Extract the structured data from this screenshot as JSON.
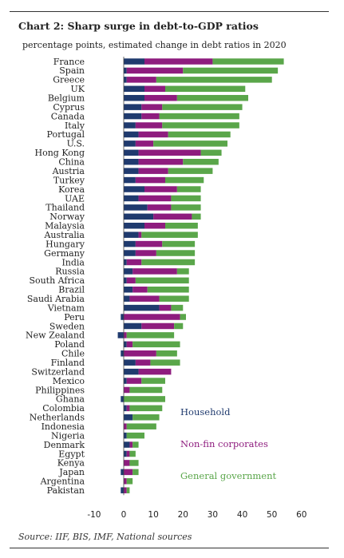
{
  "title": "Chart 2: Sharp surge in debt-to-GDP ratios",
  "subtitle": "percentage points, estimated change in debt ratios in 2020",
  "source": "Source: IIF, BIS, IMF, National sources",
  "colors": {
    "household": "#1f3a6e",
    "nonfin": "#8e1c7e",
    "government": "#5aa64a"
  },
  "chart_data": {
    "type": "bar",
    "orientation": "horizontal",
    "stacked": true,
    "categories": [
      "France",
      "Spain",
      "Greece",
      "UK",
      "Belgium",
      "Cyprus",
      "Canada",
      "Italy",
      "Portugal",
      "U.S.",
      "Hong Kong",
      "China",
      "Austria",
      "Turkey",
      "Korea",
      "UAE",
      "Thailand",
      "Norway",
      "Malaysia",
      "Australia",
      "Hungary",
      "Germany",
      "India",
      "Russia",
      "South Africa",
      "Brazil",
      "Saudi Arabia",
      "Vietnam",
      "Peru",
      "Sweden",
      "New Zealand",
      "Poland",
      "Chile",
      "Finland",
      "Switzerland",
      "Mexico",
      "Philippines",
      "Ghana",
      "Colombia",
      "Netherlands",
      "Indonesia",
      "Nigeria",
      "Denmark",
      "Egypt",
      "Kenya",
      "Japan",
      "Argentina",
      "Pakistan"
    ],
    "series": [
      {
        "name": "Household",
        "values": [
          7,
          1,
          1,
          7,
          7,
          6,
          6,
          4,
          5,
          4,
          5,
          5,
          5,
          4,
          7,
          5,
          8,
          10,
          7,
          5,
          4,
          4,
          1,
          3,
          1,
          3,
          2,
          12,
          -1,
          6,
          -2,
          1,
          -1,
          4,
          5,
          1,
          0,
          -1,
          1,
          3,
          0,
          1,
          2,
          1,
          0,
          -1,
          0,
          -1
        ]
      },
      {
        "name": "Non-fin corporates",
        "values": [
          23,
          19,
          10,
          7,
          11,
          7,
          6,
          9,
          10,
          6,
          21,
          15,
          10,
          10,
          11,
          11,
          8,
          13,
          7,
          1,
          9,
          7,
          5,
          15,
          3,
          5,
          10,
          4,
          19,
          11,
          1,
          2,
          11,
          5,
          11,
          5,
          2,
          0,
          1,
          0,
          1,
          0,
          1,
          1,
          2,
          3,
          1,
          1
        ]
      },
      {
        "name": "General government",
        "values": [
          24,
          32,
          39,
          27,
          24,
          27,
          27,
          26,
          21,
          25,
          7,
          12,
          15,
          13,
          8,
          10,
          10,
          3,
          11,
          19,
          11,
          13,
          18,
          4,
          18,
          14,
          10,
          4,
          2,
          3,
          16,
          16,
          7,
          10,
          0,
          8,
          11,
          14,
          11,
          9,
          10,
          6,
          2,
          2,
          3,
          2,
          2,
          1
        ]
      }
    ],
    "xlim": [
      -10,
      60
    ],
    "xticks": [
      -10,
      0,
      10,
      20,
      30,
      40,
      50,
      60
    ],
    "legend_position": "lower-right, inside",
    "grid": false
  }
}
